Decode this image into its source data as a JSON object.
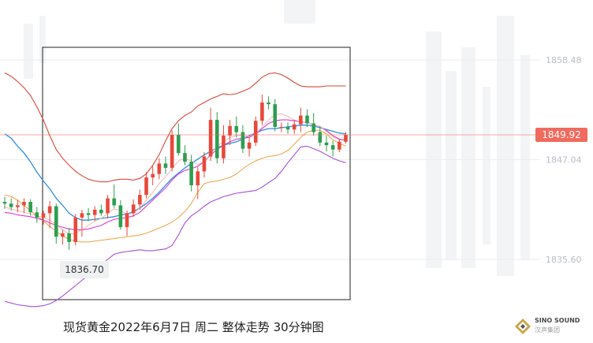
{
  "caption": "现货黄金2022年6月7日 周二 整体走势 30分钟图",
  "low_marker": "1836.70",
  "last_price": "1849.92",
  "logo": {
    "name": "SINO SOUND",
    "sub": "汉声集团",
    "icon": "diamond-logo-icon"
  },
  "colors": {
    "up": "#e8483a",
    "down": "#2e9e4f",
    "bollinger_outer": "#d9473a",
    "bollinger_lower": "#a64fd6",
    "ma_blue": "#2f8fe0",
    "ma_magenta": "#e03ad0",
    "ma_orange": "#f0a040",
    "price_tag": "#f06b5e"
  },
  "chart_data": {
    "type": "candlestick",
    "y_ticks": [
      "1858.48",
      "1847.04",
      "1835.60"
    ],
    "ylim": [
      1830.0,
      1863.5
    ],
    "candles": [
      [
        1842.2,
        1842.8,
        1841.4,
        1842.0
      ],
      [
        1842.0,
        1842.6,
        1841.2,
        1841.6
      ],
      [
        1841.6,
        1842.4,
        1841.0,
        1841.8
      ],
      [
        1841.8,
        1842.6,
        1840.9,
        1842.2
      ],
      [
        1842.2,
        1842.5,
        1840.6,
        1841.0
      ],
      [
        1841.0,
        1841.6,
        1839.8,
        1840.4
      ],
      [
        1840.4,
        1841.2,
        1839.6,
        1840.9
      ],
      [
        1840.9,
        1842.3,
        1839.2,
        1841.7
      ],
      [
        1841.7,
        1842.0,
        1837.4,
        1838.2
      ],
      [
        1838.2,
        1839.0,
        1837.3,
        1838.6
      ],
      [
        1838.6,
        1839.2,
        1836.7,
        1837.6
      ],
      [
        1837.6,
        1840.8,
        1837.2,
        1840.4
      ],
      [
        1840.4,
        1841.3,
        1838.2,
        1840.9
      ],
      [
        1840.9,
        1841.5,
        1840.0,
        1840.7
      ],
      [
        1840.7,
        1841.7,
        1840.0,
        1841.3
      ],
      [
        1841.3,
        1841.9,
        1840.6,
        1840.9
      ],
      [
        1840.9,
        1843.0,
        1840.3,
        1842.6
      ],
      [
        1842.6,
        1844.2,
        1841.5,
        1841.8
      ],
      [
        1841.8,
        1842.4,
        1839.0,
        1839.3
      ],
      [
        1839.3,
        1841.2,
        1838.3,
        1840.9
      ],
      [
        1840.9,
        1842.5,
        1840.5,
        1841.9
      ],
      [
        1841.9,
        1843.6,
        1841.3,
        1843.0
      ],
      [
        1843.0,
        1845.6,
        1842.6,
        1845.0
      ],
      [
        1845.0,
        1846.3,
        1844.1,
        1845.4
      ],
      [
        1845.4,
        1847.2,
        1844.8,
        1846.6
      ],
      [
        1846.6,
        1847.4,
        1845.4,
        1846.1
      ],
      [
        1846.1,
        1850.4,
        1845.7,
        1849.9
      ],
      [
        1849.9,
        1851.2,
        1847.5,
        1847.8
      ],
      [
        1847.8,
        1848.7,
        1846.4,
        1846.8
      ],
      [
        1846.8,
        1847.6,
        1843.4,
        1844.1
      ],
      [
        1844.1,
        1846.2,
        1842.5,
        1845.7
      ],
      [
        1845.7,
        1847.9,
        1845.0,
        1847.4
      ],
      [
        1847.4,
        1853.0,
        1846.9,
        1851.6
      ],
      [
        1851.6,
        1852.5,
        1846.6,
        1847.2
      ],
      [
        1847.2,
        1851.0,
        1846.6,
        1849.8
      ],
      [
        1849.8,
        1851.6,
        1848.7,
        1850.9
      ],
      [
        1850.9,
        1852.0,
        1849.6,
        1850.2
      ],
      [
        1850.2,
        1851.0,
        1847.8,
        1848.3
      ],
      [
        1848.3,
        1849.6,
        1847.4,
        1849.0
      ],
      [
        1849.0,
        1852.0,
        1848.6,
        1851.5
      ],
      [
        1851.5,
        1854.5,
        1851.0,
        1853.6
      ],
      [
        1853.6,
        1854.3,
        1852.8,
        1853.4
      ],
      [
        1853.4,
        1854.0,
        1850.3,
        1850.8
      ],
      [
        1850.8,
        1851.3,
        1850.2,
        1850.8
      ],
      [
        1850.8,
        1851.3,
        1850.0,
        1850.5
      ],
      [
        1850.5,
        1851.6,
        1850.0,
        1851.1
      ],
      [
        1851.1,
        1853.0,
        1850.2,
        1852.1
      ],
      [
        1852.1,
        1852.8,
        1850.8,
        1851.2
      ],
      [
        1851.2,
        1852.4,
        1849.8,
        1850.2
      ],
      [
        1850.2,
        1850.9,
        1848.6,
        1849.0
      ],
      [
        1849.0,
        1849.8,
        1848.0,
        1848.7
      ],
      [
        1848.7,
        1849.2,
        1847.4,
        1848.2
      ],
      [
        1848.2,
        1849.4,
        1847.9,
        1849.1
      ],
      [
        1849.1,
        1850.2,
        1848.9,
        1849.9
      ]
    ],
    "series": [
      {
        "values": [
          1857.0,
          1856.6,
          1856.0,
          1855.3,
          1854.4,
          1853.1,
          1851.6,
          1849.8,
          1848.2,
          1847.2,
          1846.4,
          1845.7,
          1845.2,
          1844.8,
          1844.6,
          1844.5,
          1844.5,
          1844.7,
          1844.8,
          1844.8,
          1844.7,
          1844.9,
          1845.4,
          1846.4,
          1847.6,
          1849.2,
          1850.6,
          1851.5,
          1852.1,
          1852.5,
          1853.2,
          1853.6,
          1854.0,
          1854.3,
          1854.6,
          1854.5,
          1854.6,
          1854.9,
          1855.2,
          1855.8,
          1856.5,
          1856.9,
          1857.0,
          1856.8,
          1856.4,
          1855.9,
          1855.5,
          1855.4,
          1855.4,
          1855.4,
          1855.5,
          1855.5,
          1855.5,
          1855.5
        ]
      },
      {
        "values": [
          1850.0,
          1849.5,
          1848.6,
          1847.8,
          1846.8,
          1845.6,
          1844.6,
          1843.7,
          1842.6,
          1841.8,
          1840.9,
          1840.4,
          1840.1,
          1840.1,
          1840.2,
          1840.3,
          1840.4,
          1840.5,
          1840.7,
          1840.8,
          1841.1,
          1841.5,
          1842.0,
          1842.6,
          1843.3,
          1844.1,
          1844.9,
          1845.5,
          1846.1,
          1846.6,
          1847.1,
          1847.6,
          1848.0,
          1848.4,
          1848.7,
          1848.9,
          1849.1,
          1849.4,
          1849.8,
          1850.1,
          1850.4,
          1850.6,
          1850.6,
          1850.7,
          1850.8,
          1850.9,
          1851.0,
          1851.0,
          1850.9,
          1850.7,
          1850.5,
          1850.3,
          1850.1,
          1850.0
        ]
      },
      {
        "values": [
          1843.0,
          1842.8,
          1842.4,
          1841.8,
          1841.2,
          1840.6,
          1840.0,
          1839.4,
          1838.8,
          1838.3,
          1837.9,
          1837.7,
          1837.6,
          1837.6,
          1837.7,
          1837.8,
          1837.9,
          1838.0,
          1838.1,
          1838.2,
          1838.3,
          1838.4,
          1838.6,
          1838.9,
          1839.2,
          1839.5,
          1839.9,
          1840.4,
          1841.1,
          1842.0,
          1843.3,
          1844.3,
          1844.5,
          1844.6,
          1844.8,
          1845.0,
          1845.4,
          1846.0,
          1846.5,
          1846.9,
          1847.2,
          1847.4,
          1847.5,
          1847.7,
          1848.1,
          1848.8,
          1849.6,
          1850.2,
          1850.4,
          1850.4,
          1850.0,
          1849.3,
          1848.9,
          1848.6
        ]
      },
      {
        "values": [
          1841.0,
          1840.9,
          1840.7,
          1840.6,
          1840.5,
          1840.3,
          1840.1,
          1839.8,
          1839.5,
          1839.3,
          1839.1,
          1839.0,
          1839.0,
          1839.1,
          1839.3,
          1839.5,
          1839.9,
          1840.2,
          1840.3,
          1840.4,
          1840.6,
          1841.0,
          1841.7,
          1842.4,
          1843.1,
          1843.8,
          1844.7,
          1845.4,
          1845.8,
          1846.0,
          1846.3,
          1846.8,
          1847.6,
          1848.2,
          1848.7,
          1849.1,
          1849.4,
          1849.5,
          1849.6,
          1850.0,
          1850.6,
          1851.2,
          1851.5,
          1851.6,
          1851.6,
          1851.5,
          1851.4,
          1851.3,
          1851.1,
          1850.8,
          1850.4,
          1849.8,
          1849.4,
          1849.3
        ]
      },
      {
        "values": [
          1841.6,
          1841.4,
          1841.2,
          1841.0,
          1840.8,
          1840.6,
          1840.4,
          1840.1,
          1839.6,
          1839.0,
          1838.5,
          1838.6,
          1839.0,
          1839.5,
          1840.0,
          1840.3,
          1840.9,
          1841.4,
          1841.2,
          1840.8,
          1840.9,
          1841.5,
          1842.4,
          1843.3,
          1844.3,
          1845.1,
          1846.0,
          1846.9,
          1847.2,
          1846.9,
          1846.5,
          1846.8,
          1847.7,
          1848.6,
          1849.1,
          1849.6,
          1849.8,
          1849.8,
          1849.7,
          1850.0,
          1850.8,
          1851.6,
          1852.2,
          1852.3,
          1852.0,
          1851.6,
          1851.4,
          1851.3,
          1851.1,
          1850.8,
          1850.3,
          1849.7,
          1849.3,
          1849.2
        ]
      },
      {
        "values": [
          1830.8,
          1830.6,
          1830.4,
          1830.3,
          1830.2,
          1830.2,
          1830.3,
          1830.5,
          1830.9,
          1831.4,
          1832.0,
          1832.6,
          1833.2,
          1833.8,
          1834.4,
          1835.0,
          1835.6,
          1836.2,
          1836.4,
          1836.5,
          1836.6,
          1836.7,
          1836.6,
          1836.6,
          1836.7,
          1836.8,
          1837.2,
          1838.4,
          1839.8,
          1840.6,
          1841.1,
          1841.7,
          1842.2,
          1842.5,
          1842.8,
          1843.0,
          1843.2,
          1843.3,
          1843.4,
          1843.5,
          1843.9,
          1844.4,
          1844.9,
          1845.7,
          1846.7,
          1847.6,
          1848.5,
          1848.6,
          1848.3,
          1848.0,
          1847.6,
          1847.2,
          1846.9,
          1846.7
        ]
      }
    ]
  }
}
